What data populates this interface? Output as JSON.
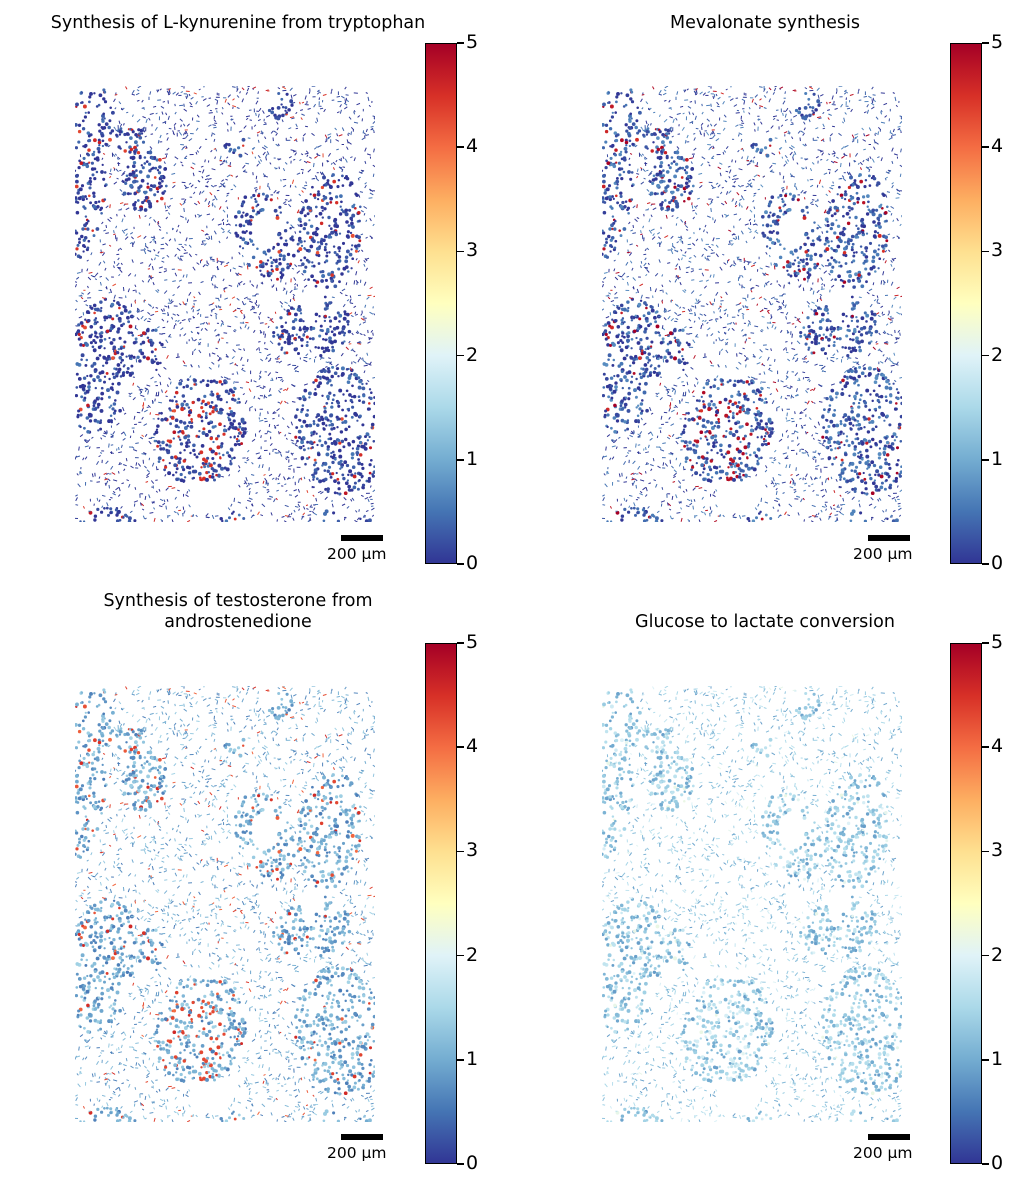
{
  "colormap": [
    "#313695",
    "#4575b4",
    "#74add1",
    "#abd9e9",
    "#e0f3f8",
    "#ffffbf",
    "#fee090",
    "#fdae61",
    "#f46d43",
    "#d73027",
    "#a50026"
  ],
  "chart_data": [
    {
      "type": "heatmap",
      "title": "Synthesis of L-kynurenine from tryptophan",
      "colorbar": {
        "range": [
          0,
          5
        ],
        "ticks": [
          "0",
          "1",
          "2",
          "3",
          "4",
          "5"
        ]
      },
      "scale_bar_label": "200 µm",
      "dominant_value": 0.1,
      "hotspot_value": 4.5
    },
    {
      "type": "heatmap",
      "title": "Mevalonate synthesis",
      "colorbar": {
        "range": [
          0,
          5
        ],
        "ticks": [
          "0",
          "1",
          "2",
          "3",
          "4",
          "5"
        ]
      },
      "scale_bar_label": "200 µm",
      "dominant_value": 0.3,
      "hotspot_value": 4.8
    },
    {
      "type": "heatmap",
      "title": "Synthesis of testosterone from\nandrostenedione",
      "colorbar": {
        "range": [
          0,
          5
        ],
        "ticks": [
          "0",
          "1",
          "2",
          "3",
          "4",
          "5"
        ]
      },
      "scale_bar_label": "200 µm",
      "dominant_value": 1.0,
      "hotspot_value": 4.3
    },
    {
      "type": "heatmap",
      "title": "Glucose to lactate conversion",
      "colorbar": {
        "range": [
          0,
          5
        ],
        "ticks": [
          "0",
          "1",
          "2",
          "3",
          "4",
          "5"
        ]
      },
      "scale_bar_label": "200 µm",
      "dominant_value": 1.3,
      "hotspot_value": 1.9
    }
  ]
}
